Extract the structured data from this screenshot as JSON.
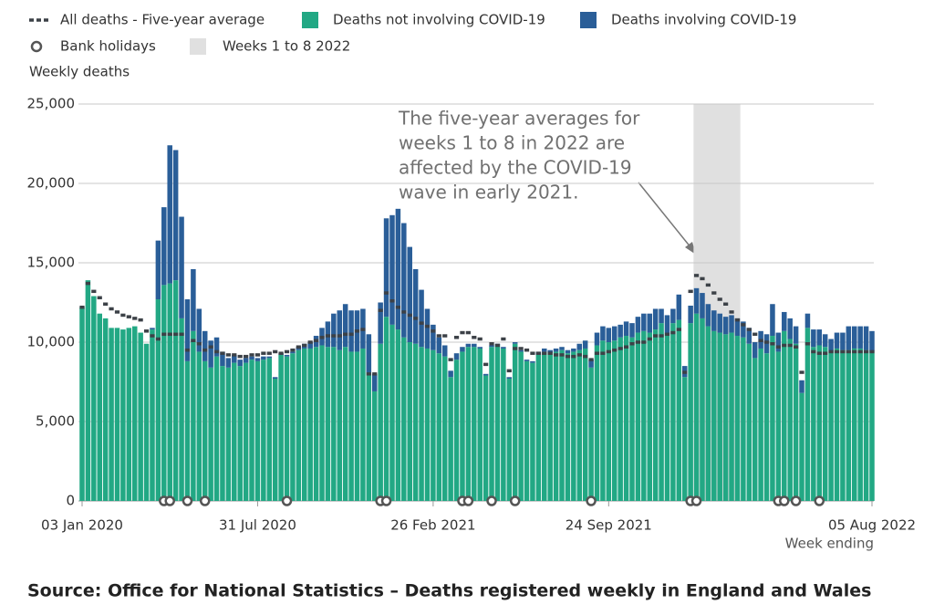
{
  "chart_data": {
    "type": "bar",
    "stacked": true,
    "y_label": "Weekly deaths",
    "x_label": "Week ending",
    "source": "Source: Office for National Statistics – Deaths registered weekly in England and Wales",
    "annotation": [
      "The five-year averages for",
      "weeks 1 to 8 in 2022 are",
      "affected by the COVID-19",
      "wave in early 2021."
    ],
    "ylim": [
      0,
      25000
    ],
    "yticks": [
      0,
      {
        "value": 5000,
        "label": "5,000"
      },
      {
        "value": 10000,
        "label": "10,000"
      },
      {
        "value": 15000,
        "label": "15,000"
      },
      {
        "value": 20000,
        "label": "20,000"
      },
      {
        "value": 25000,
        "label": "25,000"
      }
    ],
    "grid": true,
    "highlight": {
      "name": "Weeks 1 to 8 2022",
      "color": "#e0e0e0",
      "from": 105,
      "to": 112
    },
    "categories": [
      "03 Jan 2020",
      null,
      null,
      null,
      null,
      null,
      null,
      null,
      null,
      null,
      null,
      null,
      null,
      null,
      null,
      null,
      null,
      null,
      null,
      null,
      null,
      null,
      null,
      null,
      null,
      null,
      null,
      null,
      null,
      null,
      "31 Jul 2020",
      null,
      null,
      null,
      null,
      null,
      null,
      null,
      null,
      null,
      null,
      null,
      null,
      null,
      null,
      null,
      null,
      null,
      null,
      null,
      null,
      null,
      null,
      null,
      null,
      null,
      null,
      null,
      null,
      null,
      "26 Feb 2021",
      null,
      null,
      null,
      null,
      null,
      null,
      null,
      null,
      null,
      null,
      null,
      null,
      null,
      null,
      null,
      null,
      null,
      null,
      null,
      null,
      null,
      null,
      null,
      null,
      null,
      null,
      null,
      null,
      null,
      "24 Sep 2021",
      null,
      null,
      null,
      null,
      null,
      null,
      null,
      null,
      null,
      null,
      null,
      null,
      null,
      null,
      null,
      null,
      null,
      null,
      null,
      null,
      null,
      null,
      null,
      null,
      null,
      null,
      null,
      null,
      null,
      null,
      null,
      null,
      null,
      null,
      null,
      null,
      null,
      null,
      null,
      null,
      null,
      null,
      null,
      null,
      "05 Aug 2022"
    ],
    "series": [
      {
        "name": "All deaths - Five-year average",
        "kind": "average",
        "color": "#3c4147",
        "values": [
          12200,
          13700,
          13200,
          12800,
          12400,
          12100,
          11900,
          11700,
          11600,
          11500,
          11400,
          10700,
          10400,
          10200,
          10500,
          10500,
          10500,
          10500,
          9500,
          10100,
          9900,
          9500,
          9700,
          9400,
          9300,
          9200,
          9200,
          9100,
          9100,
          9200,
          9200,
          9300,
          9300,
          9400,
          9300,
          9400,
          9500,
          9700,
          9800,
          10000,
          10100,
          10300,
          10400,
          10400,
          10400,
          10500,
          10500,
          10700,
          10800,
          8000,
          8000,
          12000,
          13100,
          12600,
          12200,
          11900,
          11700,
          11500,
          11200,
          11000,
          10700,
          10400,
          10400,
          8900,
          10300,
          10600,
          10600,
          10300,
          10200,
          8600,
          9900,
          9800,
          10200,
          8200,
          9600,
          9600,
          9500,
          9300,
          9300,
          9300,
          9300,
          9200,
          9200,
          9100,
          9100,
          9200,
          9100,
          8900,
          9300,
          9300,
          9400,
          9500,
          9600,
          9700,
          9900,
          10000,
          10000,
          10200,
          10400,
          10400,
          10500,
          10600,
          10800,
          8100,
          13200,
          14200,
          14000,
          13600,
          13100,
          12700,
          12400,
          11900,
          11400,
          11100,
          10800,
          10500,
          10100,
          10000,
          9900,
          9700,
          9800,
          9800,
          9700,
          8100,
          9900,
          9400,
          9300,
          9300,
          9400,
          9400,
          9400,
          9400,
          9400,
          9400,
          9400,
          9400
        ]
      },
      {
        "name": "Deaths not involving COVID-19",
        "kind": "bar",
        "color": "#22a884",
        "values": [
          12200,
          13900,
          12900,
          11800,
          11500,
          10900,
          10900,
          10800,
          10900,
          11000,
          10600,
          9900,
          10800,
          12700,
          13600,
          13700,
          13900,
          11500,
          8800,
          10700,
          9400,
          8800,
          8400,
          9100,
          8500,
          8400,
          8700,
          8500,
          8700,
          8900,
          8800,
          8900,
          9000,
          7700,
          9200,
          9100,
          9300,
          9500,
          9600,
          9600,
          9700,
          9800,
          9700,
          9700,
          9500,
          9700,
          9400,
          9400,
          9600,
          8100,
          6900,
          9900,
          11600,
          11100,
          10800,
          10300,
          10000,
          9900,
          9700,
          9600,
          9500,
          9300,
          9100,
          7800,
          8900,
          9400,
          9700,
          9700,
          9600,
          7900,
          9700,
          9800,
          9600,
          7700,
          9900,
          9400,
          8800,
          8700,
          9200,
          9400,
          9300,
          9400,
          9500,
          9300,
          9400,
          9500,
          9600,
          8400,
          9800,
          10100,
          10000,
          10100,
          10300,
          10400,
          10300,
          10600,
          10700,
          10600,
          10800,
          11200,
          10500,
          11200,
          11400,
          7800,
          11200,
          11800,
          11500,
          11000,
          10700,
          10600,
          10500,
          10600,
          10400,
          10300,
          9900,
          9000,
          9600,
          9300,
          10400,
          9400,
          10700,
          10200,
          9900,
          6800,
          10900,
          9700,
          9800,
          9700,
          9400,
          9600,
          9500,
          9500,
          9600,
          9600,
          9500,
          9400
        ]
      },
      {
        "name": "Deaths involving COVID-19",
        "kind": "bar",
        "color": "#2a5e98",
        "values": [
          0,
          0,
          0,
          0,
          0,
          0,
          0,
          0,
          0,
          0,
          0,
          0,
          100,
          3700,
          4900,
          8700,
          8200,
          6400,
          3900,
          3900,
          2700,
          1900,
          1700,
          1200,
          900,
          600,
          500,
          400,
          300,
          200,
          200,
          200,
          100,
          100,
          100,
          100,
          100,
          200,
          300,
          400,
          700,
          1100,
          1600,
          2100,
          2500,
          2700,
          2600,
          2600,
          2500,
          2400,
          1100,
          2600,
          6200,
          6900,
          7600,
          7200,
          6000,
          4700,
          3600,
          2500,
          1600,
          1000,
          700,
          400,
          400,
          300,
          200,
          200,
          100,
          100,
          100,
          100,
          100,
          100,
          100,
          100,
          100,
          100,
          200,
          200,
          200,
          200,
          200,
          200,
          200,
          400,
          500,
          500,
          800,
          900,
          900,
          900,
          800,
          900,
          900,
          1000,
          1100,
          1200,
          1300,
          900,
          1200,
          900,
          1600,
          700,
          1100,
          1600,
          1600,
          1400,
          1300,
          1200,
          1100,
          1100,
          1100,
          1000,
          1000,
          1000,
          1100,
          1200,
          2000,
          1200,
          1200,
          1300,
          1100,
          800,
          900,
          1100,
          1000,
          800,
          800,
          1000,
          1100,
          1500,
          1400,
          1400,
          1500,
          1300
        ]
      },
      {
        "name": "Bank holidays",
        "kind": "marker",
        "color": "#555555",
        "values": [
          null,
          null,
          null,
          null,
          null,
          null,
          null,
          null,
          null,
          null,
          null,
          null,
          null,
          null,
          0,
          0,
          null,
          null,
          0,
          null,
          null,
          0,
          null,
          null,
          null,
          null,
          null,
          null,
          null,
          null,
          null,
          null,
          null,
          null,
          null,
          0,
          null,
          null,
          null,
          null,
          null,
          null,
          null,
          null,
          null,
          null,
          null,
          null,
          null,
          null,
          null,
          0,
          0,
          null,
          null,
          null,
          null,
          null,
          null,
          null,
          null,
          null,
          null,
          null,
          null,
          0,
          0,
          null,
          null,
          null,
          0,
          null,
          null,
          null,
          0,
          null,
          null,
          null,
          null,
          null,
          null,
          null,
          null,
          null,
          null,
          null,
          null,
          0,
          null,
          null,
          null,
          null,
          null,
          null,
          null,
          null,
          null,
          null,
          null,
          null,
          null,
          null,
          null,
          null,
          0,
          0,
          null,
          null,
          null,
          null,
          null,
          null,
          null,
          null,
          null,
          null,
          null,
          null,
          null,
          0,
          0,
          null,
          0,
          null,
          null,
          null,
          0,
          null,
          null,
          null,
          null,
          null,
          null,
          null,
          null,
          null
        ]
      }
    ]
  }
}
